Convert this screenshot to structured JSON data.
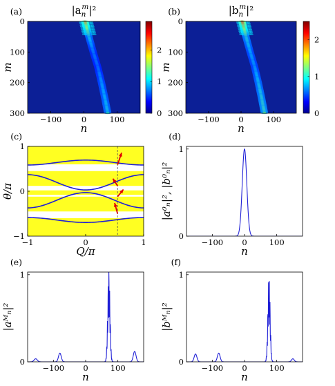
{
  "colors": {
    "line": "#1f1fd6",
    "heat_bg": "#0c1f96",
    "band_fill": "#ffff22",
    "arrow": "#e00000",
    "dashed": "#555555"
  },
  "colorbar": {
    "colors": [
      "#00008f",
      "#0000ff",
      "#0080ff",
      "#00ffff",
      "#80ff80",
      "#ffff00",
      "#ff8000",
      "#ff0000",
      "#800000"
    ]
  },
  "chart_data": [
    {
      "id": "a",
      "panel_label": "(a)",
      "type": "heatmap",
      "title": "|a",
      "title_sub": "n",
      "title_sup": "m",
      "title_end": "|²",
      "xlabel": "n",
      "ylabel": "m",
      "xlim": [
        -170,
        170
      ],
      "ylim": [
        0,
        300
      ],
      "xticks": [
        -100,
        0,
        100
      ],
      "xtick_labels": [
        "−100",
        "0",
        "100"
      ],
      "yticks": [
        0,
        100,
        200,
        300
      ],
      "ytick_labels": [
        "0",
        "100",
        "200",
        "300"
      ],
      "colorbar_ticks": [
        0,
        1,
        2
      ],
      "colorbar_tick_labels": [
        "0",
        "1",
        "2"
      ],
      "colorbar_range": [
        0,
        2.9
      ],
      "ridge": [
        {
          "m": 0,
          "n": 3,
          "intensity": 2.4
        },
        {
          "m": 50,
          "n": 15,
          "intensity": 1.2
        },
        {
          "m": 100,
          "n": 28,
          "intensity": 0.9
        },
        {
          "m": 150,
          "n": 42,
          "intensity": 0.85
        },
        {
          "m": 200,
          "n": 53,
          "intensity": 1.0
        },
        {
          "m": 250,
          "n": 63,
          "intensity": 1.1
        },
        {
          "m": 300,
          "n": 72,
          "intensity": 1.2
        }
      ]
    },
    {
      "id": "b",
      "panel_label": "(b)",
      "type": "heatmap",
      "title": "|b",
      "title_sub": "n",
      "title_sup": "m",
      "title_end": "|²",
      "xlabel": "n",
      "ylabel": "m",
      "xlim": [
        -170,
        170
      ],
      "ylim": [
        0,
        300
      ],
      "xticks": [
        -100,
        0,
        100
      ],
      "xtick_labels": [
        "−100",
        "0",
        "100"
      ],
      "yticks": [
        0,
        100,
        200,
        300
      ],
      "ytick_labels": [
        "0",
        "100",
        "200",
        "300"
      ],
      "colorbar_ticks": [
        0,
        1,
        2
      ],
      "colorbar_tick_labels": [
        "0",
        "1",
        "2"
      ],
      "colorbar_range": [
        0,
        2.5
      ],
      "ridge": [
        {
          "m": 0,
          "n": 3,
          "intensity": 2.3
        },
        {
          "m": 50,
          "n": 15,
          "intensity": 1.1
        },
        {
          "m": 100,
          "n": 28,
          "intensity": 0.9
        },
        {
          "m": 150,
          "n": 42,
          "intensity": 0.85
        },
        {
          "m": 200,
          "n": 53,
          "intensity": 1.0
        },
        {
          "m": 250,
          "n": 63,
          "intensity": 1.1
        },
        {
          "m": 300,
          "n": 72,
          "intensity": 1.2
        }
      ]
    },
    {
      "id": "c",
      "panel_label": "(c)",
      "type": "line",
      "xlabel": "Q/π",
      "ylabel": "θ/π",
      "xlim": [
        -1,
        1
      ],
      "ylim": [
        -1,
        1
      ],
      "xticks": [
        -1,
        0,
        1
      ],
      "xtick_labels": [
        "−1",
        "0",
        "1"
      ],
      "yticks": [
        -1,
        0,
        1
      ],
      "ytick_labels": [
        "−1",
        "0",
        "1"
      ],
      "bands": [
        [
          -1,
          -0.6
        ],
        [
          -0.45,
          -0.12
        ],
        [
          0.12,
          0.45
        ],
        [
          0.6,
          1
        ]
      ],
      "extra_band": [
        -0.08,
        0.02
      ],
      "curves": [
        {
          "offset": 0.64,
          "amp": 0.055,
          "phase": 1
        },
        {
          "offset": 0.2,
          "amp": 0.17,
          "phase": -1
        },
        {
          "offset": -0.2,
          "amp": 0.17,
          "phase": 1
        },
        {
          "offset": -0.64,
          "amp": 0.055,
          "phase": -1
        }
      ],
      "dashed_x": 0.55,
      "arrows": [
        {
          "x0": 0.55,
          "y0": 0.59,
          "x1": 0.62,
          "y1": 0.86
        },
        {
          "x0": 0.55,
          "y0": 0.12,
          "x1": 0.47,
          "y1": 0.28
        },
        {
          "x0": 0.55,
          "y0": -0.12,
          "x1": 0.65,
          "y1": 0.04
        },
        {
          "x0": 0.55,
          "y0": -0.5,
          "x1": 0.5,
          "y1": -0.26
        }
      ]
    },
    {
      "id": "d",
      "panel_label": "(d)",
      "type": "line",
      "xlabel": "n",
      "ylabel": "|a⁰ₙ|², |b⁰ₙ|²",
      "xlim": [
        -180,
        180
      ],
      "ylim": [
        0,
        1.03
      ],
      "xticks": [
        -100,
        0,
        100
      ],
      "xtick_labels": [
        "−100",
        "0",
        "100"
      ],
      "yticks": [
        0,
        1
      ],
      "ytick_labels": [
        "0",
        "1"
      ],
      "peaks": [
        {
          "center": 0,
          "height": 1.0,
          "width": 10
        }
      ]
    },
    {
      "id": "e",
      "panel_label": "(e)",
      "type": "line",
      "xlabel": "n",
      "ylabel": "|aᴹₙ|²",
      "xlim": [
        -180,
        180
      ],
      "ylim": [
        0,
        1.03
      ],
      "xticks": [
        -100,
        0,
        100
      ],
      "xtick_labels": [
        "−100",
        "0",
        "100"
      ],
      "yticks": [
        0,
        1
      ],
      "ytick_labels": [
        "0",
        "1"
      ],
      "peaks": [
        {
          "center": -155,
          "height": 0.035,
          "width": 7
        },
        {
          "center": -80,
          "height": 0.1,
          "width": 6
        },
        {
          "center": 72,
          "height": 1.05,
          "width": 5
        },
        {
          "center": 152,
          "height": 0.12,
          "width": 6
        }
      ]
    },
    {
      "id": "f",
      "panel_label": "(f)",
      "type": "line",
      "xlabel": "n",
      "ylabel": "|bᴹₙ|²",
      "xlim": [
        -180,
        180
      ],
      "ylim": [
        0,
        1.03
      ],
      "xticks": [
        -100,
        0,
        100
      ],
      "xtick_labels": [
        "−100",
        "0",
        "100"
      ],
      "yticks": [
        0,
        1
      ],
      "ytick_labels": [
        "0",
        "1"
      ],
      "peaks": [
        {
          "center": -152,
          "height": 0.09,
          "width": 6
        },
        {
          "center": -80,
          "height": 0.1,
          "width": 6
        },
        {
          "center": 76,
          "height": 1.0,
          "width": 5
        },
        {
          "center": 150,
          "height": 0.035,
          "width": 6
        }
      ]
    }
  ]
}
